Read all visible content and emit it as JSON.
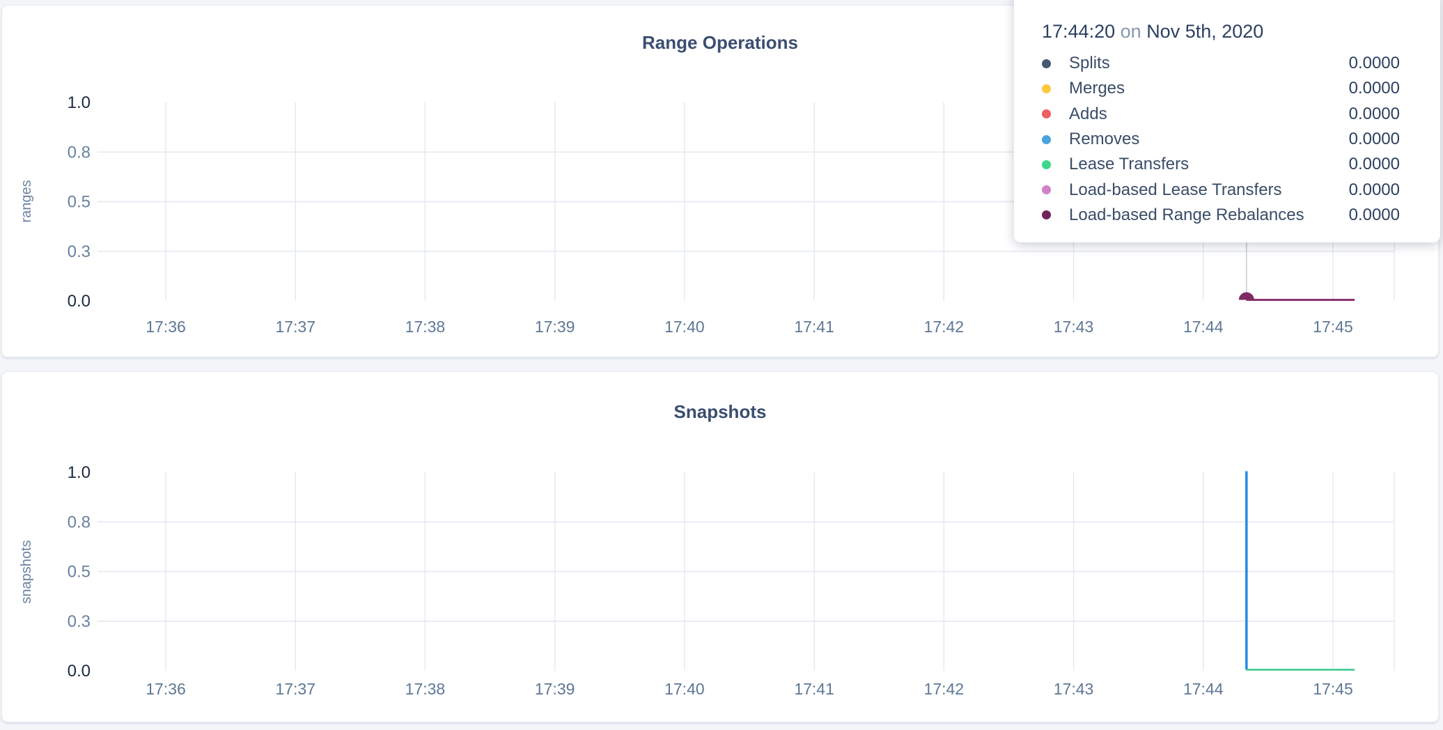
{
  "tooltip": {
    "time": "17:44:20",
    "connector": "on",
    "date": "Nov 5th, 2020",
    "rows": [
      {
        "label": "Splits",
        "value": "0.0000",
        "color": "#475872"
      },
      {
        "label": "Merges",
        "value": "0.0000",
        "color": "#ffc73e"
      },
      {
        "label": "Adds",
        "value": "0.0000",
        "color": "#f05f5f"
      },
      {
        "label": "Removes",
        "value": "0.0000",
        "color": "#4aa3dd"
      },
      {
        "label": "Lease Transfers",
        "value": "0.0000",
        "color": "#3ed68c"
      },
      {
        "label": "Load-based Lease Transfers",
        "value": "0.0000",
        "color": "#d082c8"
      },
      {
        "label": "Load-based Range Rebalances",
        "value": "0.0000",
        "color": "#732258"
      }
    ]
  },
  "chart_data": [
    {
      "id": "range-operations",
      "type": "line",
      "title": "Range Operations",
      "ylabel": "ranges",
      "ylim": [
        0,
        1
      ],
      "grid": true,
      "y_ticks": [
        {
          "label": "1.0",
          "pos": 1.0,
          "grid": false,
          "emph": true
        },
        {
          "label": "0.8",
          "pos": 0.75,
          "grid": true,
          "emph": false
        },
        {
          "label": "0.5",
          "pos": 0.5,
          "grid": true,
          "emph": false
        },
        {
          "label": "0.3",
          "pos": 0.25,
          "grid": true,
          "emph": false
        },
        {
          "label": "0.0",
          "pos": 0.0,
          "grid": false,
          "emph": true
        }
      ],
      "x_ticks": [
        "17:36",
        "17:37",
        "17:38",
        "17:39",
        "17:40",
        "17:41",
        "17:42",
        "17:43",
        "17:44",
        "17:45"
      ],
      "series": [
        {
          "name": "Splits",
          "color": "#475872",
          "width": 3,
          "points": [
            [
              "17:44:20",
              0
            ],
            [
              "17:45:10",
              0
            ]
          ]
        },
        {
          "name": "Merges",
          "color": "#ffc73e",
          "width": 3,
          "points": [
            [
              "17:44:20",
              0
            ],
            [
              "17:45:10",
              0
            ]
          ]
        },
        {
          "name": "Adds",
          "color": "#f05f5f",
          "width": 3,
          "points": [
            [
              "17:44:20",
              0
            ],
            [
              "17:45:10",
              0
            ]
          ]
        },
        {
          "name": "Removes",
          "color": "#4aa3dd",
          "width": 3,
          "points": [
            [
              "17:44:20",
              0
            ],
            [
              "17:45:10",
              0
            ]
          ]
        },
        {
          "name": "Lease Transfers",
          "color": "#3ed68c",
          "width": 3,
          "points": [
            [
              "17:44:20",
              0
            ],
            [
              "17:45:10",
              0
            ]
          ]
        },
        {
          "name": "Load-based Lease Transfers",
          "color": "#d082c8",
          "width": 3,
          "points": [
            [
              "17:44:20",
              0
            ],
            [
              "17:45:10",
              0
            ]
          ]
        },
        {
          "name": "Load-based Range Rebalances",
          "color": "#8a3370",
          "width": 3,
          "points": [
            [
              "17:44:20",
              0
            ],
            [
              "17:45:10",
              0
            ]
          ]
        }
      ],
      "hover": {
        "time": "17:44:20",
        "highlight_series": "Load-based Range Rebalances",
        "highlight_value": 0,
        "dot_color": "#7d2b62"
      }
    },
    {
      "id": "snapshots",
      "type": "line",
      "title": "Snapshots",
      "ylabel": "snapshots",
      "ylim": [
        0,
        1
      ],
      "grid": true,
      "y_ticks": [
        {
          "label": "1.0",
          "pos": 1.0,
          "grid": false,
          "emph": true
        },
        {
          "label": "0.8",
          "pos": 0.75,
          "grid": true,
          "emph": false
        },
        {
          "label": "0.5",
          "pos": 0.5,
          "grid": true,
          "emph": false
        },
        {
          "label": "0.3",
          "pos": 0.25,
          "grid": true,
          "emph": false
        },
        {
          "label": "0.0",
          "pos": 0.0,
          "grid": false,
          "emph": true
        }
      ],
      "x_ticks": [
        "17:36",
        "17:37",
        "17:38",
        "17:39",
        "17:40",
        "17:41",
        "17:42",
        "17:43",
        "17:44",
        "17:45"
      ],
      "series": [
        {
          "name": "",
          "color": "#1f87e5",
          "width": 3.4,
          "points": [
            [
              "17:44:20",
              1.0
            ],
            [
              "17:44:20",
              0
            ]
          ]
        },
        {
          "name": "",
          "color": "#36c98c",
          "width": 2.6,
          "points": [
            [
              "17:44:20",
              0
            ],
            [
              "17:45:10",
              0
            ]
          ]
        }
      ]
    }
  ]
}
